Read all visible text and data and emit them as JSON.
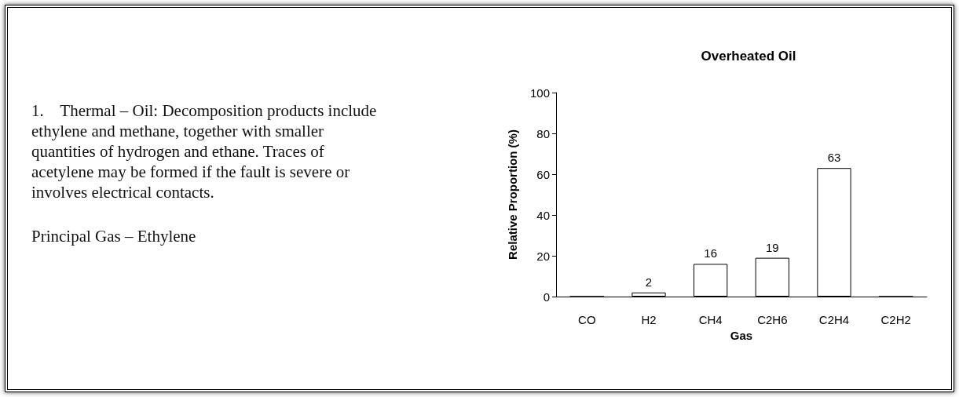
{
  "chart_data": {
    "type": "bar",
    "title": "Overheated Oil",
    "xlabel": "Gas",
    "ylabel": "Relative Proportion (%)",
    "categories": [
      "CO",
      "H2",
      "CH4",
      "C2H6",
      "C2H4",
      "C2H2"
    ],
    "values": [
      0,
      2,
      16,
      19,
      63,
      0
    ],
    "value_labels": [
      null,
      "2",
      "16",
      "19",
      "63",
      null
    ],
    "color": "#ffffff",
    "ylim": [
      0,
      100
    ],
    "yticks": [
      0,
      20,
      40,
      60,
      80,
      100
    ],
    "annotations": [
      "1.    Thermal – Oil: Decomposition products include ethylene and methane, together with smaller quantities of hydrogen and ethane. Traces of acetylene may be formed if the fault is severe or involves electrical contacts.",
      "Principal Gas – Ethylene"
    ]
  }
}
